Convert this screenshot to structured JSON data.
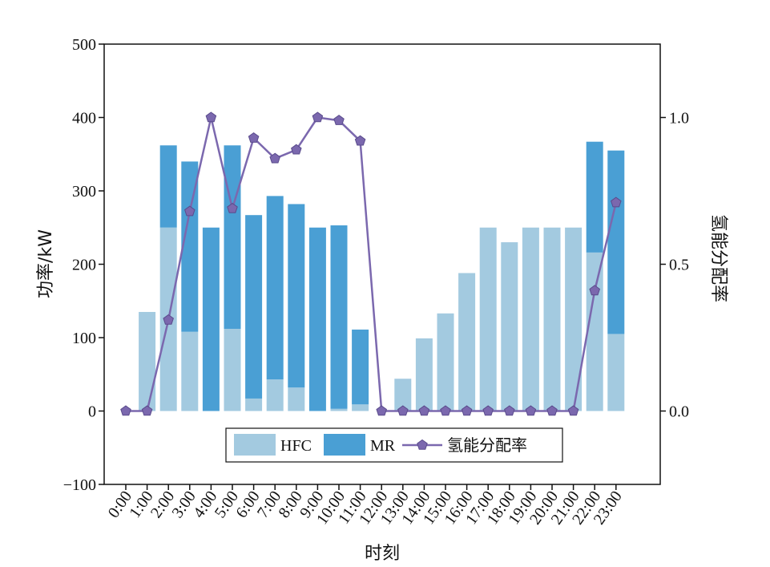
{
  "chart_data": {
    "type": "bar",
    "bar_mode": "stacked",
    "xlabel": "时刻",
    "ylabel": "功率/kW",
    "y2label": "氢能分配率",
    "ylim": [
      -100,
      500
    ],
    "y2lim": [
      -0.25,
      1.25
    ],
    "yticks": [
      -100,
      0,
      100,
      200,
      300,
      400,
      500
    ],
    "y2ticks": [
      "0.0",
      "0.5",
      "1.0"
    ],
    "y2tick_values": [
      0,
      0.5,
      1.0
    ],
    "categories": [
      "0:00",
      "1:00",
      "2:00",
      "3:00",
      "4:00",
      "5:00",
      "6:00",
      "7:00",
      "8:00",
      "9:00",
      "10:00",
      "11:00",
      "12:00",
      "13:00",
      "14:00",
      "15:00",
      "16:00",
      "17:00",
      "18:00",
      "19:00",
      "20:00",
      "21:00",
      "22:00",
      "23:00"
    ],
    "series": [
      {
        "name": "HFC",
        "kind": "bar",
        "color": "#a3cae0",
        "values": [
          0,
          135,
          250,
          108,
          0,
          112,
          17,
          43,
          32,
          0,
          3,
          9,
          0,
          44,
          99,
          133,
          188,
          250,
          230,
          250,
          250,
          250,
          216,
          105
        ]
      },
      {
        "name": "MR",
        "kind": "bar",
        "color": "#4a9fd4",
        "values": [
          0,
          0,
          112,
          232,
          250,
          250,
          250,
          250,
          250,
          250,
          250,
          102,
          0,
          0,
          0,
          0,
          0,
          0,
          0,
          0,
          0,
          0,
          151,
          250
        ]
      },
      {
        "name": "氢能分配率",
        "kind": "line",
        "axis": "right",
        "color": "#7b68ae",
        "marker": "pentagon",
        "values": [
          0,
          0,
          0.31,
          0.68,
          1.0,
          0.69,
          0.93,
          0.86,
          0.89,
          1.0,
          0.99,
          0.92,
          0,
          0,
          0,
          0,
          0,
          0,
          0,
          0,
          0,
          0,
          0.41,
          0.71
        ]
      }
    ],
    "legend_position": "bottom-center"
  }
}
